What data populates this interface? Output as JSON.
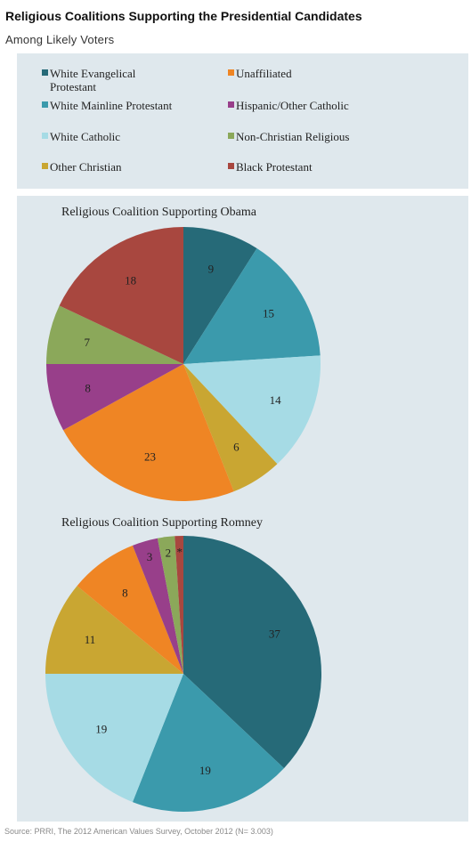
{
  "header": {
    "title": "Religious Coalitions Supporting the Presidential Candidates",
    "subtitle": "Among Likely Voters"
  },
  "legend": [
    {
      "label": "White Evangelical Protestant",
      "color": "#266a78"
    },
    {
      "label": "Unaffiliated",
      "color": "#ef8524"
    },
    {
      "label": "White Mainline Protestant",
      "color": "#3b9aac"
    },
    {
      "label": "Hispanic/Other Catholic",
      "color": "#983f8a"
    },
    {
      "label": "White Catholic",
      "color": "#a6dbe5"
    },
    {
      "label": "Non-Christian Religious",
      "color": "#8ba85a"
    },
    {
      "label": "Other Christian",
      "color": "#c9a632"
    },
    {
      "label": "Black Protestant",
      "color": "#a8473f"
    }
  ],
  "chart_data": [
    {
      "type": "pie",
      "title": "Religious Coalition Supporting Obama",
      "slices": [
        {
          "name": "White Evangelical Protestant",
          "value": 9,
          "label": "9",
          "color": "#266a78"
        },
        {
          "name": "White Mainline Protestant",
          "value": 15,
          "label": "15",
          "color": "#3b9aac"
        },
        {
          "name": "White Catholic",
          "value": 14,
          "label": "14",
          "color": "#a6dbe5"
        },
        {
          "name": "Other Christian",
          "value": 6,
          "label": "6",
          "color": "#c9a632"
        },
        {
          "name": "Unaffiliated",
          "value": 23,
          "label": "23",
          "color": "#ef8524"
        },
        {
          "name": "Hispanic/Other Catholic",
          "value": 8,
          "label": "8",
          "color": "#983f8a"
        },
        {
          "name": "Non-Christian Religious",
          "value": 7,
          "label": "7",
          "color": "#8ba85a"
        },
        {
          "name": "Black Protestant",
          "value": 18,
          "label": "18",
          "color": "#a8473f"
        }
      ]
    },
    {
      "type": "pie",
      "title": "Religious Coalition Supporting Romney",
      "slices": [
        {
          "name": "White Evangelical Protestant",
          "value": 37,
          "label": "37",
          "color": "#266a78"
        },
        {
          "name": "White Mainline Protestant",
          "value": 19,
          "label": "19",
          "color": "#3b9aac"
        },
        {
          "name": "White Catholic",
          "value": 19,
          "label": "19",
          "color": "#a6dbe5"
        },
        {
          "name": "Other Christian",
          "value": 11,
          "label": "11",
          "color": "#c9a632"
        },
        {
          "name": "Unaffiliated",
          "value": 8,
          "label": "8",
          "color": "#ef8524"
        },
        {
          "name": "Hispanic/Other Catholic",
          "value": 3,
          "label": "3",
          "color": "#983f8a"
        },
        {
          "name": "Non-Christian Religious",
          "value": 2,
          "label": "2",
          "color": "#8ba85a"
        },
        {
          "name": "Black Protestant",
          "value": 1,
          "label": "*",
          "color": "#a8473f"
        }
      ]
    }
  ],
  "footer": {
    "source": "Source: PRRI, The 2012 American Values Survey, October 2012 (N= 3.003)"
  }
}
